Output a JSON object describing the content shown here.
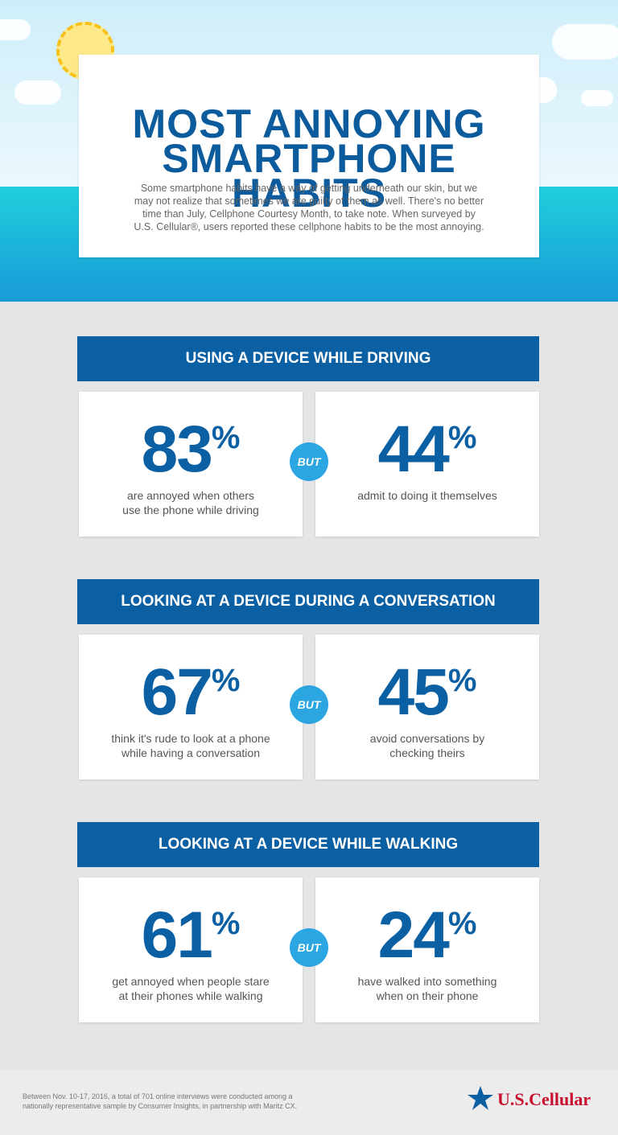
{
  "header": {
    "title_lines": [
      "MOST ANNOYING",
      "SMARTPHONE HABITS"
    ],
    "intro_lines": [
      "Some smartphone habits have a way of getting underneath our skin, but we",
      "may not realize that sometimes we are guilty of them as well. There's no better",
      "time than July, Cellphone Courtesy Month, to take note. When surveyed by",
      "U.S. Cellular®, users reported these cellphone habits to be the most annoying."
    ]
  },
  "sections": [
    {
      "heading": "USING A DEVICE WHILE DRIVING",
      "connector": "BUT",
      "stats": [
        {
          "number": "83",
          "suffix": "%",
          "caption_lines": [
            "are annoyed when others",
            "use the phone while driving"
          ]
        },
        {
          "number": "44",
          "suffix": "%",
          "caption_lines": [
            "admit to doing it themselves"
          ]
        }
      ]
    },
    {
      "heading": "LOOKING AT A DEVICE DURING A CONVERSATION",
      "connector": "BUT",
      "stats": [
        {
          "number": "67",
          "suffix": "%",
          "caption_lines": [
            "think it's rude to look at a phone",
            "while having a conversation"
          ]
        },
        {
          "number": "45",
          "suffix": "%",
          "caption_lines": [
            "avoid conversations by",
            "checking theirs"
          ]
        }
      ]
    },
    {
      "heading": "LOOKING AT A DEVICE WHILE WALKING",
      "connector": "BUT",
      "stats": [
        {
          "number": "61",
          "suffix": "%",
          "caption_lines": [
            "get annoyed when people stare",
            "at their phones while walking"
          ]
        },
        {
          "number": "24",
          "suffix": "%",
          "caption_lines": [
            "have walked into something",
            "when on their phone"
          ]
        }
      ]
    }
  ],
  "footer": {
    "note_lines": [
      "Between Nov. 10-17, 2016, a total of 701 online interviews were conducted among a",
      "nationally representative sample by Consumer Insights, in partnership with Maritz CX."
    ],
    "logo": "U.S.Cellular"
  }
}
